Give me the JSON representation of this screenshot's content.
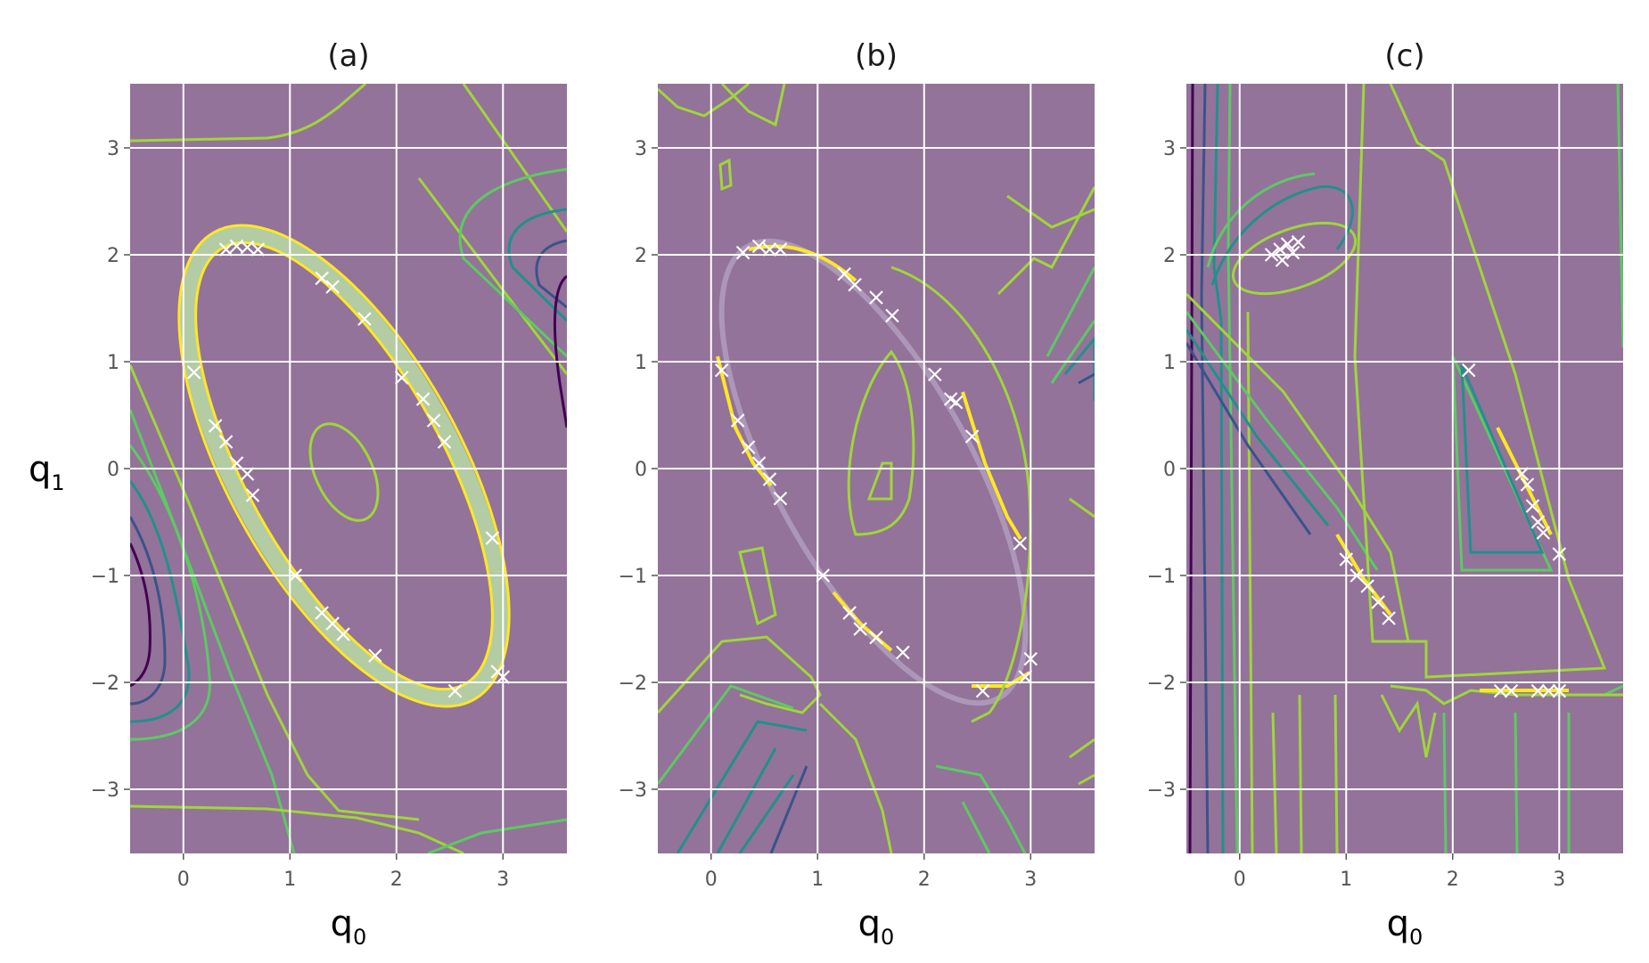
{
  "figure": {
    "panels": [
      {
        "title": "(a)"
      },
      {
        "title": "(b)"
      },
      {
        "title": "(c)"
      }
    ],
    "xlabel": {
      "main": "q",
      "sub": "0"
    },
    "ylabel": {
      "main": "q",
      "sub": "1"
    }
  },
  "colors": {
    "background": "#937399",
    "grid": "#ffffff",
    "contour_levels": [
      "#440154",
      "#3b528b",
      "#21908d",
      "#5dc963",
      "#9fd63a",
      "#fde725"
    ],
    "marker": "#ffffff",
    "highlight": "#fde725"
  },
  "chart_data": [
    {
      "type": "contour",
      "title": "(a)",
      "xlabel": "q0",
      "ylabel": "q1",
      "xlim": [
        -0.5,
        3.6
      ],
      "ylim": [
        -3.6,
        3.6
      ],
      "xticks": [
        0,
        1,
        2,
        3
      ],
      "yticks": [
        -3,
        -2,
        -1,
        0,
        1,
        2,
        3
      ],
      "marker_points": [
        [
          0.4,
          2.05
        ],
        [
          0.5,
          2.08
        ],
        [
          0.6,
          2.07
        ],
        [
          0.7,
          2.05
        ],
        [
          1.3,
          1.78
        ],
        [
          1.4,
          1.7
        ],
        [
          1.7,
          1.4
        ],
        [
          0.1,
          0.9
        ],
        [
          0.3,
          0.4
        ],
        [
          0.4,
          0.25
        ],
        [
          0.5,
          0.05
        ],
        [
          0.6,
          -0.05
        ],
        [
          0.65,
          -0.25
        ],
        [
          2.05,
          0.85
        ],
        [
          2.25,
          0.65
        ],
        [
          2.35,
          0.45
        ],
        [
          2.45,
          0.25
        ],
        [
          2.9,
          -0.65
        ],
        [
          2.95,
          -1.9
        ],
        [
          3.0,
          -1.95
        ],
        [
          2.55,
          -2.08
        ],
        [
          1.05,
          -1.0
        ],
        [
          1.3,
          -1.35
        ],
        [
          1.4,
          -1.45
        ],
        [
          1.5,
          -1.55
        ],
        [
          1.8,
          -1.75
        ]
      ]
    },
    {
      "type": "contour",
      "title": "(b)",
      "xlabel": "q0",
      "ylabel": "",
      "xlim": [
        -0.5,
        3.6
      ],
      "ylim": [
        -3.6,
        3.6
      ],
      "xticks": [
        0,
        1,
        2,
        3
      ],
      "yticks": [
        -3,
        -2,
        -1,
        0,
        1,
        2,
        3
      ],
      "marker_points": [
        [
          0.3,
          2.02
        ],
        [
          0.45,
          2.08
        ],
        [
          0.55,
          2.05
        ],
        [
          0.65,
          2.05
        ],
        [
          1.25,
          1.82
        ],
        [
          1.35,
          1.72
        ],
        [
          1.55,
          1.6
        ],
        [
          1.7,
          1.43
        ],
        [
          0.1,
          0.92
        ],
        [
          0.25,
          0.45
        ],
        [
          0.35,
          0.2
        ],
        [
          0.45,
          0.05
        ],
        [
          0.55,
          -0.1
        ],
        [
          0.65,
          -0.28
        ],
        [
          2.1,
          0.88
        ],
        [
          2.25,
          0.65
        ],
        [
          2.3,
          0.62
        ],
        [
          2.45,
          0.3
        ],
        [
          2.9,
          -0.7
        ],
        [
          2.95,
          -1.95
        ],
        [
          3.0,
          -1.78
        ],
        [
          2.55,
          -2.08
        ],
        [
          1.05,
          -1.0
        ],
        [
          1.3,
          -1.35
        ],
        [
          1.4,
          -1.5
        ],
        [
          1.55,
          -1.58
        ],
        [
          1.8,
          -1.72
        ]
      ]
    },
    {
      "type": "contour",
      "title": "(c)",
      "xlabel": "q0",
      "ylabel": "",
      "xlim": [
        -0.5,
        3.6
      ],
      "ylim": [
        -3.6,
        3.6
      ],
      "xticks": [
        0,
        1,
        2,
        3
      ],
      "yticks": [
        -3,
        -2,
        -1,
        0,
        1,
        2,
        3
      ],
      "marker_points": [
        [
          0.3,
          2.0
        ],
        [
          0.38,
          2.05
        ],
        [
          0.45,
          2.1
        ],
        [
          0.5,
          2.02
        ],
        [
          0.55,
          2.12
        ],
        [
          0.4,
          1.95
        ],
        [
          2.15,
          0.92
        ],
        [
          2.65,
          -0.05
        ],
        [
          2.7,
          -0.15
        ],
        [
          2.75,
          -0.35
        ],
        [
          2.8,
          -0.5
        ],
        [
          2.85,
          -0.6
        ],
        [
          3.0,
          -0.8
        ],
        [
          1.0,
          -0.85
        ],
        [
          1.1,
          -1.0
        ],
        [
          1.2,
          -1.1
        ],
        [
          1.3,
          -1.25
        ],
        [
          1.4,
          -1.4
        ],
        [
          2.45,
          -2.08
        ],
        [
          2.55,
          -2.08
        ],
        [
          2.8,
          -2.08
        ],
        [
          2.9,
          -2.08
        ],
        [
          3.0,
          -2.08
        ]
      ]
    }
  ]
}
